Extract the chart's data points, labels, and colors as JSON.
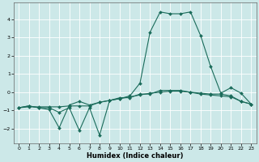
{
  "xlabel": "Humidex (Indice chaleur)",
  "background_color": "#cce8e8",
  "grid_color": "#ffffff",
  "line_color": "#1a6b5a",
  "xlim": [
    -0.5,
    23.5
  ],
  "ylim": [
    -2.8,
    4.9
  ],
  "yticks": [
    -2,
    -1,
    0,
    1,
    2,
    3,
    4
  ],
  "xticks": [
    0,
    1,
    2,
    3,
    4,
    5,
    6,
    7,
    8,
    9,
    10,
    11,
    12,
    13,
    14,
    15,
    16,
    17,
    18,
    19,
    20,
    21,
    22,
    23
  ],
  "series1_x": [
    0,
    1,
    2,
    3,
    4,
    5,
    6,
    7,
    8,
    9,
    10,
    11,
    12,
    13,
    14,
    15,
    16,
    17,
    18,
    19,
    20,
    21,
    22,
    23
  ],
  "series1_y": [
    -0.85,
    -0.8,
    -0.8,
    -0.8,
    -0.8,
    -0.75,
    -0.75,
    -0.75,
    -0.55,
    -0.45,
    -0.35,
    -0.25,
    -0.15,
    -0.05,
    0.0,
    0.05,
    0.05,
    0.0,
    -0.05,
    -0.1,
    -0.1,
    -0.2,
    -0.5,
    -0.65
  ],
  "series2_x": [
    0,
    1,
    2,
    3,
    4,
    5,
    6,
    7,
    8,
    9,
    10,
    11,
    12,
    13,
    14,
    15,
    16,
    17,
    18,
    19,
    20,
    21,
    22,
    23
  ],
  "series2_y": [
    -0.85,
    -0.75,
    -0.85,
    -0.95,
    -1.95,
    -0.7,
    -0.5,
    -0.7,
    -0.55,
    -0.45,
    -0.3,
    -0.3,
    -0.1,
    -0.1,
    0.1,
    0.1,
    0.1,
    0.0,
    -0.1,
    -0.15,
    -0.2,
    -0.25,
    -0.5,
    -0.65
  ],
  "series3_x": [
    0,
    1,
    2,
    3,
    4,
    5,
    6,
    7,
    8,
    9,
    10,
    11,
    12,
    13,
    14,
    15,
    16,
    17,
    18,
    19,
    20,
    21,
    22,
    23
  ],
  "series3_y": [
    -0.85,
    -0.75,
    -0.85,
    -0.85,
    -1.1,
    -0.85,
    -2.1,
    -0.85,
    -2.35,
    -0.45,
    -0.35,
    -0.2,
    0.5,
    3.3,
    4.4,
    4.3,
    4.3,
    4.4,
    3.1,
    1.4,
    -0.05,
    0.25,
    -0.05,
    -0.65
  ]
}
